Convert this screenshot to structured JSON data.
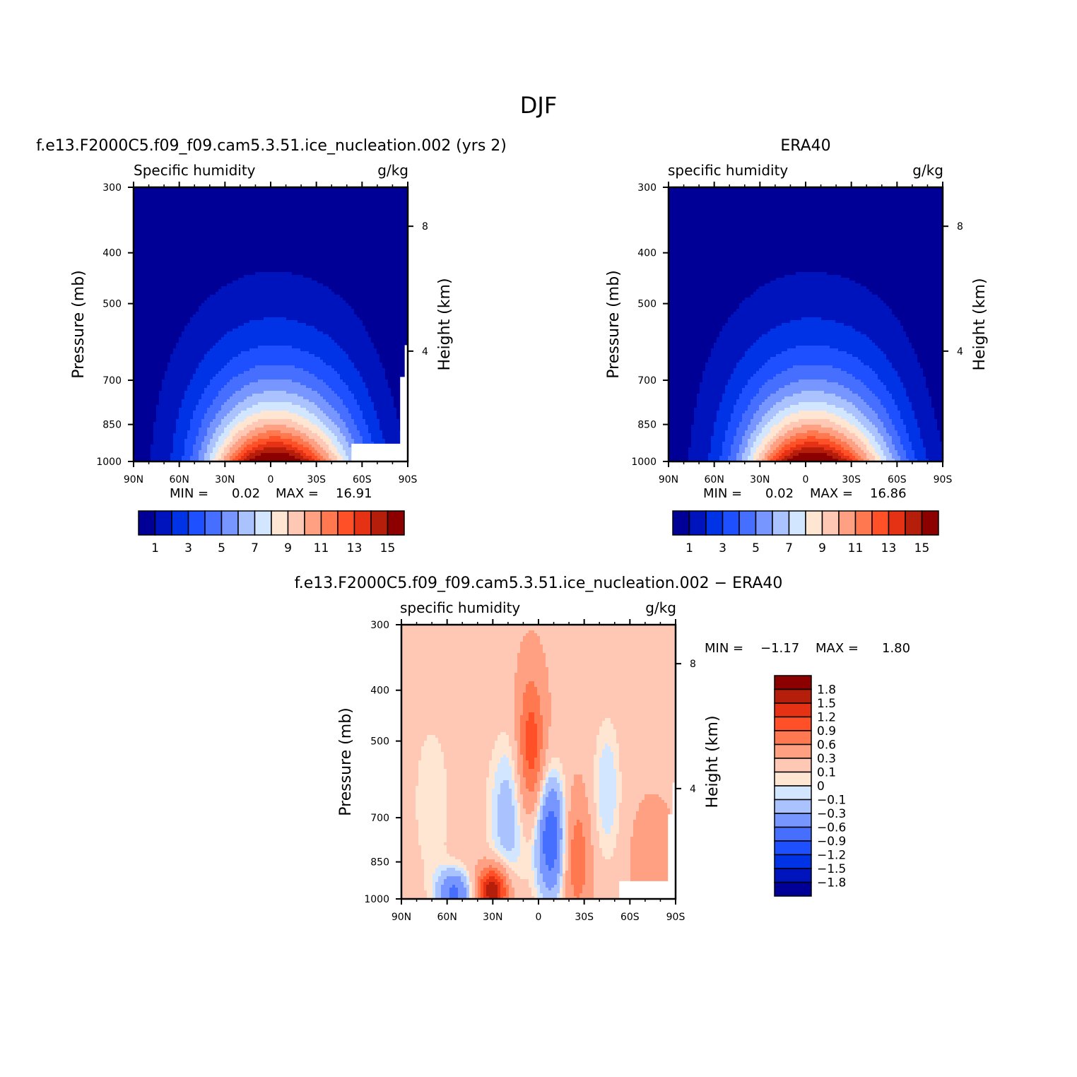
{
  "figure": {
    "title": "DJF"
  },
  "colors": {
    "levels": [
      "#000096",
      "#0014be",
      "#0032e6",
      "#1e50ff",
      "#466eff",
      "#7896ff",
      "#aac3ff",
      "#d2e6ff",
      "#ffe6d2",
      "#ffc8b4",
      "#ffa082",
      "#ff7850",
      "#ff5028",
      "#e63214",
      "#b41e0a",
      "#8c0000"
    ],
    "axis": "#000000",
    "missing": "#ffffff"
  },
  "chart_data": [
    {
      "id": "model",
      "type": "heatmap",
      "title": "f.e13.F2000C5.f09_f09.cam5.3.51.ice_nucleation.002 (yrs 2)",
      "subtitle_left": "Specific humidity",
      "subtitle_right": "g/kg",
      "ylabel": "Pressure (mb)",
      "ylabel_right": "Height (km)",
      "x_ticks": [
        "90N",
        "60N",
        "30N",
        "0",
        "30S",
        "60S",
        "90S"
      ],
      "x_values": [
        90,
        60,
        30,
        0,
        -30,
        -60,
        -90
      ],
      "y_ticks": [
        "300",
        "400",
        "500",
        "700",
        "850",
        "1000"
      ],
      "y_values": [
        300,
        400,
        500,
        700,
        850,
        1000
      ],
      "y_scale": "log",
      "right_ticks": [
        "8",
        "4"
      ],
      "right_tick_pressure": [
        356,
        616
      ],
      "min_label": "MIN =",
      "min_value": "0.02",
      "max_label": "MAX =",
      "max_value": "16.91",
      "min": 0.02,
      "max": 16.91,
      "peak_lat": 0,
      "peak_width": 30,
      "colorbar": {
        "orientation": "horizontal",
        "boundaries": [
          1,
          2,
          3,
          4,
          5,
          6,
          7,
          8,
          9,
          10,
          11,
          12,
          13,
          14,
          15
        ],
        "labels": [
          "1",
          "3",
          "5",
          "7",
          "9",
          "11",
          "13",
          "15"
        ]
      }
    },
    {
      "id": "obs",
      "type": "heatmap",
      "title": "ERA40",
      "subtitle_left": "specific humidity",
      "subtitle_right": "g/kg",
      "ylabel": "Pressure (mb)",
      "ylabel_right": "Height (km)",
      "x_ticks": [
        "90N",
        "60N",
        "30N",
        "0",
        "30S",
        "60S",
        "90S"
      ],
      "x_values": [
        90,
        60,
        30,
        0,
        -30,
        -60,
        -90
      ],
      "y_ticks": [
        "300",
        "400",
        "500",
        "700",
        "850",
        "1000"
      ],
      "y_values": [
        300,
        400,
        500,
        700,
        850,
        1000
      ],
      "y_scale": "log",
      "right_ticks": [
        "8",
        "4"
      ],
      "right_tick_pressure": [
        356,
        616
      ],
      "min_label": "MIN =",
      "min_value": "0.02",
      "max_label": "MAX =",
      "max_value": "16.86",
      "min": 0.02,
      "max": 16.86,
      "peak_lat": -2,
      "peak_width": 30,
      "colorbar": {
        "orientation": "horizontal",
        "boundaries": [
          1,
          2,
          3,
          4,
          5,
          6,
          7,
          8,
          9,
          10,
          11,
          12,
          13,
          14,
          15
        ],
        "labels": [
          "1",
          "3",
          "5",
          "7",
          "9",
          "11",
          "13",
          "15"
        ]
      }
    },
    {
      "id": "diff",
      "type": "heatmap",
      "title": "f.e13.F2000C5.f09_f09.cam5.3.51.ice_nucleation.002 − ERA40",
      "subtitle_left": "specific humidity",
      "subtitle_right": "g/kg",
      "ylabel": "Pressure (mb)",
      "ylabel_right": "Height (km)",
      "x_ticks": [
        "90N",
        "60N",
        "30N",
        "0",
        "30S",
        "60S",
        "90S"
      ],
      "x_values": [
        90,
        60,
        30,
        0,
        -30,
        -60,
        -90
      ],
      "y_ticks": [
        "300",
        "400",
        "500",
        "700",
        "850",
        "1000"
      ],
      "y_values": [
        300,
        400,
        500,
        700,
        850,
        1000
      ],
      "y_scale": "log",
      "right_ticks": [
        "8",
        "4"
      ],
      "right_tick_pressure": [
        356,
        616
      ],
      "min_label": "MIN =",
      "min_value": "−1.17",
      "max_label": "MAX =",
      "max_value": "1.80",
      "min": -1.17,
      "max": 1.8,
      "colorbar": {
        "orientation": "vertical",
        "boundaries": [
          1.8,
          1.5,
          1.2,
          0.9,
          0.6,
          0.3,
          0.1,
          0,
          -0.1,
          -0.3,
          -0.6,
          -0.9,
          -1.2,
          -1.5,
          -1.8
        ],
        "labels": [
          "1.8",
          "1.5",
          "1.2",
          "0.9",
          "0.6",
          "0.3",
          "0.1",
          "0",
          "−0.1",
          "−0.3",
          "−0.6",
          "−0.9",
          "−1.2",
          "−1.5",
          "−1.8"
        ]
      }
    }
  ]
}
